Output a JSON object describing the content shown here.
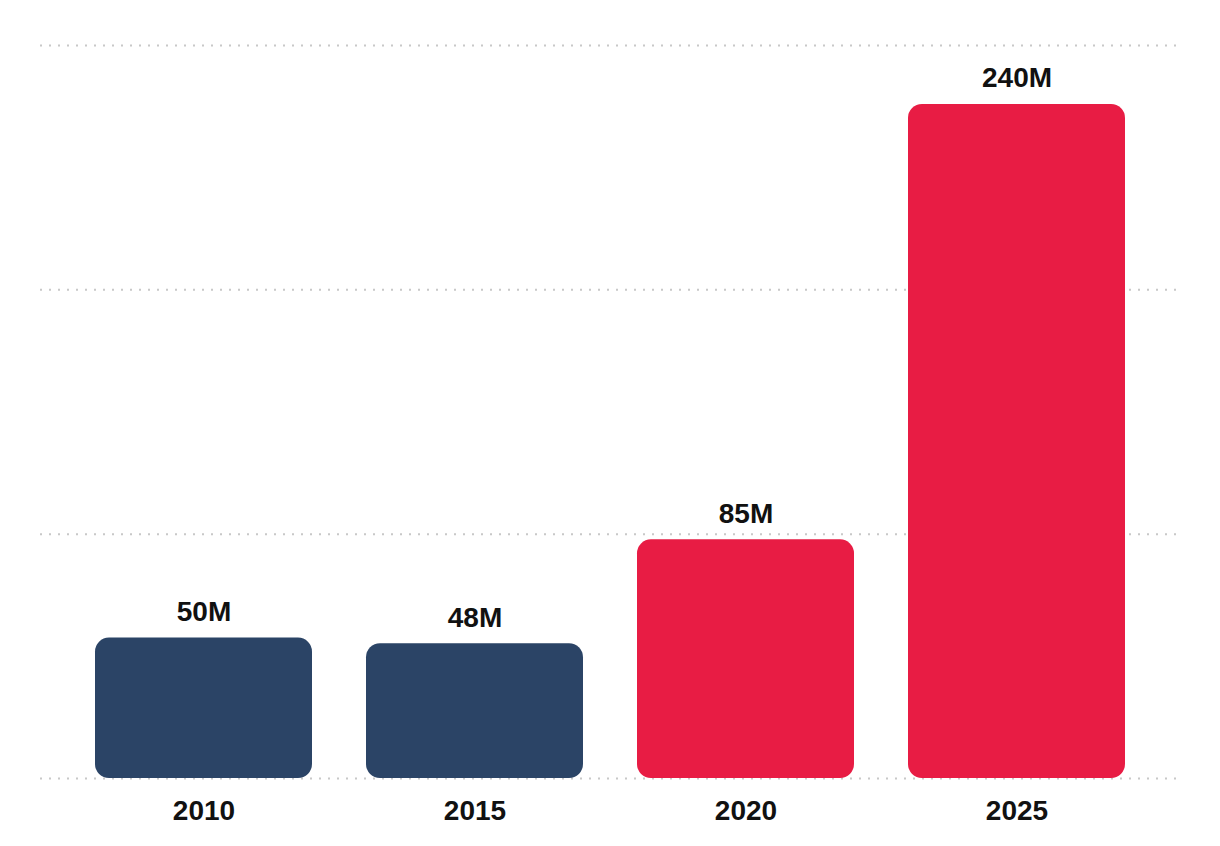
{
  "chart_data": {
    "type": "bar",
    "categories": [
      "2010",
      "2015",
      "2020",
      "2025"
    ],
    "values": [
      50,
      48,
      85,
      240
    ],
    "value_labels": [
      "50M",
      "48M",
      "85M",
      "240M"
    ],
    "colors": [
      "#2b4466",
      "#2b4466",
      "#e81c44",
      "#e81c44"
    ],
    "ylim": [
      0,
      261
    ],
    "yticks": [
      0,
      87,
      174,
      261
    ],
    "grid": true,
    "data_labels": true,
    "tick_labels": "x"
  }
}
